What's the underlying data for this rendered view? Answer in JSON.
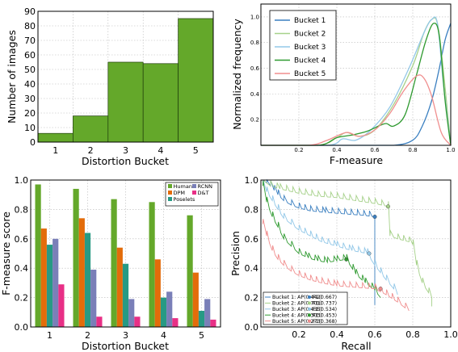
{
  "chart_data": [
    {
      "id": "hist",
      "type": "bar",
      "categories": [
        "1",
        "2",
        "3",
        "4",
        "5"
      ],
      "values": [
        6,
        18,
        55,
        54,
        85
      ],
      "xlabel": "Distortion Bucket",
      "ylabel": "Number of images",
      "ylim": [
        0,
        90
      ],
      "yticks": [
        0,
        10,
        20,
        30,
        40,
        50,
        60,
        70,
        80,
        90
      ],
      "grid": true,
      "color": "#64a82a"
    },
    {
      "id": "dist",
      "type": "line",
      "xlabel": "F-measure",
      "ylabel": "Normalized frequency",
      "xlim": [
        0,
        1
      ],
      "ylim": [
        0,
        1.1
      ],
      "xticks": [
        "0.2",
        "0.4",
        "0.6",
        "0.8",
        "1.0"
      ],
      "yticks": [
        "0.2",
        "0.4",
        "0.6",
        "0.8",
        "1.0"
      ],
      "legend_position": "top-left",
      "grid": true,
      "series": [
        {
          "name": "Bucket 1",
          "color": "#3a7fc0",
          "points": [
            [
              0,
              0
            ],
            [
              0.5,
              0
            ],
            [
              0.7,
              0
            ],
            [
              0.8,
              0.04
            ],
            [
              0.85,
              0.15
            ],
            [
              0.9,
              0.35
            ],
            [
              0.94,
              0.6
            ],
            [
              0.97,
              0.82
            ],
            [
              1.0,
              0.95
            ]
          ]
        },
        {
          "name": "Bucket 2",
          "color": "#a6d18a",
          "points": [
            [
              0,
              0
            ],
            [
              0.3,
              0
            ],
            [
              0.4,
              0.06
            ],
            [
              0.45,
              0.1
            ],
            [
              0.52,
              0.07
            ],
            [
              0.6,
              0.12
            ],
            [
              0.7,
              0.32
            ],
            [
              0.8,
              0.62
            ],
            [
              0.86,
              0.88
            ],
            [
              0.9,
              0.98
            ],
            [
              0.93,
              0.95
            ],
            [
              0.96,
              0.6
            ],
            [
              1.0,
              0
            ]
          ]
        },
        {
          "name": "Bucket 3",
          "color": "#93c8e8",
          "points": [
            [
              0,
              0
            ],
            [
              0.35,
              0
            ],
            [
              0.43,
              0.05
            ],
            [
              0.5,
              0.04
            ],
            [
              0.58,
              0.12
            ],
            [
              0.68,
              0.3
            ],
            [
              0.78,
              0.6
            ],
            [
              0.86,
              0.88
            ],
            [
              0.9,
              0.98
            ],
            [
              0.93,
              0.95
            ],
            [
              0.96,
              0.5
            ],
            [
              1.0,
              0
            ]
          ]
        },
        {
          "name": "Bucket 4",
          "color": "#2f9a30",
          "points": [
            [
              0,
              0
            ],
            [
              0.3,
              0
            ],
            [
              0.4,
              0.06
            ],
            [
              0.48,
              0.08
            ],
            [
              0.56,
              0.11
            ],
            [
              0.62,
              0.15
            ],
            [
              0.66,
              0.17
            ],
            [
              0.7,
              0.15
            ],
            [
              0.76,
              0.24
            ],
            [
              0.82,
              0.55
            ],
            [
              0.87,
              0.82
            ],
            [
              0.91,
              0.95
            ],
            [
              0.94,
              0.85
            ],
            [
              0.97,
              0.35
            ],
            [
              1.0,
              0
            ]
          ]
        },
        {
          "name": "Bucket 5",
          "color": "#f08e8e",
          "points": [
            [
              0,
              0
            ],
            [
              0.25,
              0
            ],
            [
              0.35,
              0.04
            ],
            [
              0.45,
              0.1
            ],
            [
              0.52,
              0.07
            ],
            [
              0.6,
              0.12
            ],
            [
              0.68,
              0.25
            ],
            [
              0.75,
              0.42
            ],
            [
              0.82,
              0.54
            ],
            [
              0.86,
              0.52
            ],
            [
              0.9,
              0.38
            ],
            [
              0.95,
              0.1
            ],
            [
              1.0,
              0
            ]
          ]
        }
      ]
    },
    {
      "id": "fmeasure",
      "type": "bar",
      "categories": [
        "1",
        "2",
        "3",
        "4",
        "5"
      ],
      "xlabel": "Distortion Bucket",
      "ylabel": "F-measure score",
      "ylim": [
        0,
        1.0
      ],
      "yticks": [
        "0.0",
        "0.2",
        "0.4",
        "0.6",
        "0.8",
        "1.0"
      ],
      "legend_position": "top-right",
      "grid": true,
      "series": [
        {
          "name": "Human",
          "color": "#64a82a",
          "values": [
            0.97,
            0.94,
            0.87,
            0.85,
            0.76
          ]
        },
        {
          "name": "DPM",
          "color": "#e36c0a",
          "values": [
            0.67,
            0.74,
            0.54,
            0.46,
            0.37
          ]
        },
        {
          "name": "Poselets",
          "color": "#279a84",
          "values": [
            0.56,
            0.64,
            0.43,
            0.2,
            0.11
          ]
        },
        {
          "name": "RCNN",
          "color": "#7a7fb8",
          "values": [
            0.6,
            0.39,
            0.19,
            0.24,
            0.19
          ]
        },
        {
          "name": "D&T",
          "color": "#e82f86",
          "values": [
            0.29,
            0.07,
            0.07,
            0.06,
            0.05
          ]
        }
      ]
    },
    {
      "id": "pr",
      "type": "line",
      "xlabel": "Recall",
      "ylabel": "Precision",
      "xlim": [
        0,
        1.0
      ],
      "ylim": [
        0,
        1.0
      ],
      "xticks": [
        "0.2",
        "0.4",
        "0.6",
        "0.8",
        "1.0"
      ],
      "yticks": [
        "0.0",
        "0.2",
        "0.4",
        "0.6",
        "0.8",
        "1.0"
      ],
      "legend_position": "bottom-left",
      "grid": true,
      "series": [
        {
          "name": "Bucket 1",
          "ap_label": "AP(0.442)",
          "f1_label": "F1(0.667)",
          "color": "#3a7fc0",
          "f1_point": [
            0.6,
            0.75
          ],
          "points": [
            [
              0.01,
              1.0
            ],
            [
              0.03,
              0.98
            ],
            [
              0.05,
              0.96
            ],
            [
              0.07,
              0.93
            ],
            [
              0.09,
              0.9
            ],
            [
              0.12,
              0.86
            ],
            [
              0.16,
              0.83
            ],
            [
              0.2,
              0.81
            ],
            [
              0.26,
              0.79
            ],
            [
              0.34,
              0.78
            ],
            [
              0.44,
              0.77
            ],
            [
              0.54,
              0.76
            ],
            [
              0.6,
              0.75
            ],
            [
              0.6,
              0.3
            ],
            [
              0.6,
              0.15
            ]
          ]
        },
        {
          "name": "Bucket 2",
          "ap_label": "AP(0.701)",
          "f1_label": "F1(0.737)",
          "color": "#a6d18a",
          "f1_point": [
            0.67,
            0.82
          ],
          "points": [
            [
              0.01,
              1.0
            ],
            [
              0.05,
              0.96
            ],
            [
              0.1,
              0.94
            ],
            [
              0.2,
              0.91
            ],
            [
              0.3,
              0.89
            ],
            [
              0.4,
              0.88
            ],
            [
              0.5,
              0.86
            ],
            [
              0.6,
              0.84
            ],
            [
              0.67,
              0.82
            ],
            [
              0.68,
              0.62
            ],
            [
              0.72,
              0.6
            ],
            [
              0.78,
              0.58
            ],
            [
              0.8,
              0.56
            ],
            [
              0.82,
              0.42
            ],
            [
              0.85,
              0.3
            ],
            [
              0.9,
              0.2
            ],
            [
              0.9,
              0.14
            ]
          ]
        },
        {
          "name": "Bucket 3",
          "ap_label": "AP(0.435)",
          "f1_label": "F1(0.534)",
          "color": "#93c8e8",
          "f1_point": [
            0.57,
            0.5
          ],
          "points": [
            [
              0.01,
              0.98
            ],
            [
              0.03,
              0.92
            ],
            [
              0.06,
              0.86
            ],
            [
              0.09,
              0.8
            ],
            [
              0.12,
              0.74
            ],
            [
              0.16,
              0.7
            ],
            [
              0.2,
              0.66
            ],
            [
              0.26,
              0.62
            ],
            [
              0.32,
              0.58
            ],
            [
              0.4,
              0.55
            ],
            [
              0.48,
              0.52
            ],
            [
              0.56,
              0.5
            ],
            [
              0.6,
              0.42
            ],
            [
              0.66,
              0.32
            ],
            [
              0.7,
              0.26
            ],
            [
              0.72,
              0.22
            ]
          ]
        },
        {
          "name": "Bucket 4",
          "ap_label": "AP(0.303)",
          "f1_label": "F1(0.453)",
          "color": "#2f9a30",
          "f1_point": [
            0.45,
            0.46
          ],
          "points": [
            [
              0.01,
              0.96
            ],
            [
              0.03,
              0.85
            ],
            [
              0.06,
              0.75
            ],
            [
              0.09,
              0.68
            ],
            [
              0.12,
              0.6
            ],
            [
              0.16,
              0.55
            ],
            [
              0.2,
              0.5
            ],
            [
              0.25,
              0.47
            ],
            [
              0.3,
              0.45
            ],
            [
              0.35,
              0.44
            ],
            [
              0.4,
              0.45
            ],
            [
              0.45,
              0.46
            ],
            [
              0.5,
              0.36
            ],
            [
              0.55,
              0.3
            ],
            [
              0.6,
              0.25
            ],
            [
              0.63,
              0.2
            ]
          ]
        },
        {
          "name": "Bucket 5",
          "ap_label": "AP(0.273)",
          "f1_label": "F1(0.368)",
          "color": "#f08e8e",
          "f1_point": [
            0.63,
            0.26
          ],
          "points": [
            [
              0.01,
              0.7
            ],
            [
              0.03,
              0.62
            ],
            [
              0.06,
              0.52
            ],
            [
              0.09,
              0.46
            ],
            [
              0.12,
              0.42
            ],
            [
              0.16,
              0.38
            ],
            [
              0.2,
              0.35
            ],
            [
              0.26,
              0.32
            ],
            [
              0.32,
              0.3
            ],
            [
              0.4,
              0.28
            ],
            [
              0.5,
              0.27
            ],
            [
              0.6,
              0.26
            ],
            [
              0.66,
              0.22
            ],
            [
              0.72,
              0.17
            ],
            [
              0.76,
              0.13
            ],
            [
              0.78,
              0.11
            ]
          ]
        }
      ]
    }
  ]
}
